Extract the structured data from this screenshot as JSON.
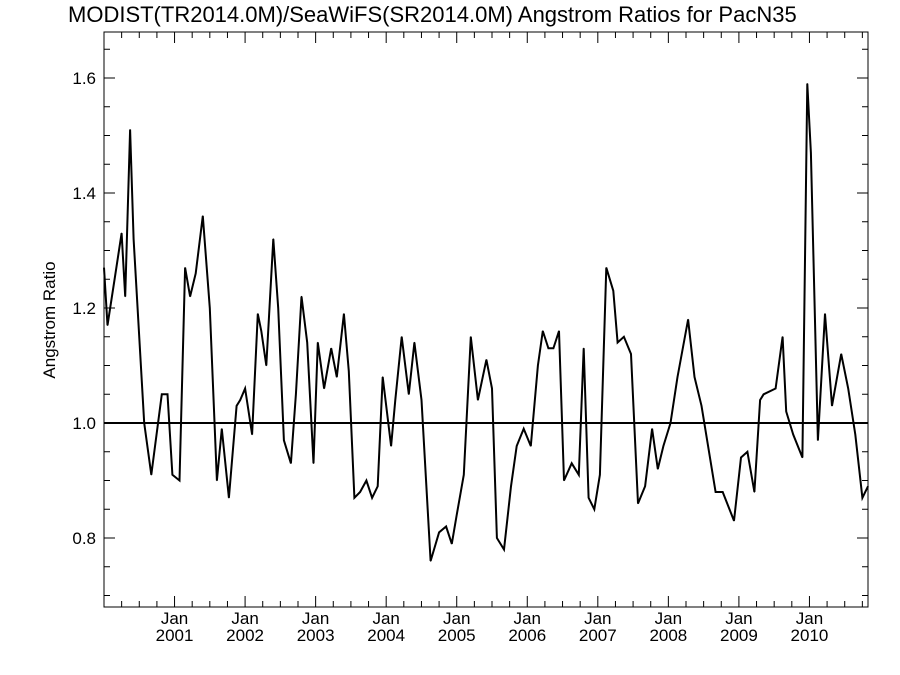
{
  "chart_data": {
    "type": "line",
    "title": "MODIST(TR2014.0M)/SeaWiFS(SR2014.0M)  Angstrom Ratios for PacN35",
    "xlabel": "",
    "ylabel": "Angstrom Ratio",
    "xlim": [
      2000.0,
      2010.83
    ],
    "ylim": [
      0.68,
      1.68
    ],
    "y_ticks": [
      {
        "value": 0.8,
        "label": "0.8"
      },
      {
        "value": 1.0,
        "label": "1.0"
      },
      {
        "value": 1.2,
        "label": "1.2"
      },
      {
        "value": 1.4,
        "label": "1.4"
      },
      {
        "value": 1.6,
        "label": "1.6"
      }
    ],
    "x_ticks": [
      {
        "value": 2001.0,
        "month": "Jan",
        "year": "2001"
      },
      {
        "value": 2002.0,
        "month": "Jan",
        "year": "2002"
      },
      {
        "value": 2003.0,
        "month": "Jan",
        "year": "2003"
      },
      {
        "value": 2004.0,
        "month": "Jan",
        "year": "2004"
      },
      {
        "value": 2005.0,
        "month": "Jan",
        "year": "2005"
      },
      {
        "value": 2006.0,
        "month": "Jan",
        "year": "2006"
      },
      {
        "value": 2007.0,
        "month": "Jan",
        "year": "2007"
      },
      {
        "value": 2008.0,
        "month": "Jan",
        "year": "2008"
      },
      {
        "value": 2009.0,
        "month": "Jan",
        "year": "2009"
      },
      {
        "value": 2010.0,
        "month": "Jan",
        "year": "2010"
      }
    ],
    "reference_line": 1.0,
    "grid": false,
    "series": [
      {
        "x": [
          2000.0,
          2000.05,
          2000.15,
          2000.25,
          2000.3,
          2000.37,
          2000.42,
          2000.57,
          2000.67,
          2000.82,
          2000.9,
          2000.97,
          2001.07,
          2001.15,
          2001.22,
          2001.3,
          2001.4,
          2001.5,
          2001.6,
          2001.67,
          2001.77,
          2001.88,
          2001.93,
          2002.0,
          2002.1,
          2002.18,
          2002.23,
          2002.3,
          2002.4,
          2002.47,
          2002.55,
          2002.65,
          2002.72,
          2002.8,
          2002.88,
          2002.97,
          2003.03,
          2003.12,
          2003.22,
          2003.3,
          2003.4,
          2003.47,
          2003.55,
          2003.63,
          2003.72,
          2003.8,
          2003.88,
          2003.95,
          2004.07,
          2004.13,
          2004.22,
          2004.32,
          2004.4,
          2004.5,
          2004.63,
          2004.75,
          2004.85,
          2004.93,
          2005.0,
          2005.1,
          2005.2,
          2005.3,
          2005.42,
          2005.5,
          2005.57,
          2005.67,
          2005.77,
          2005.85,
          2005.95,
          2006.05,
          2006.15,
          2006.22,
          2006.3,
          2006.37,
          2006.45,
          2006.52,
          2006.63,
          2006.73,
          2006.8,
          2006.87,
          2006.95,
          2007.03,
          2007.12,
          2007.22,
          2007.28,
          2007.37,
          2007.47,
          2007.57,
          2007.67,
          2007.77,
          2007.85,
          2007.93,
          2008.03,
          2008.13,
          2008.28,
          2008.37,
          2008.47,
          2008.67,
          2008.77,
          2008.93,
          2009.03,
          2009.12,
          2009.22,
          2009.3,
          2009.35,
          2009.52,
          2009.62,
          2009.67,
          2009.77,
          2009.9,
          2009.97,
          2010.02,
          2010.12,
          2010.22,
          2010.32,
          2010.45,
          2010.55,
          2010.65,
          2010.75,
          2010.83
        ],
        "values": [
          1.27,
          1.17,
          1.25,
          1.33,
          1.22,
          1.51,
          1.32,
          1.0,
          0.91,
          1.05,
          1.05,
          0.91,
          0.9,
          1.27,
          1.22,
          1.26,
          1.36,
          1.2,
          0.9,
          0.99,
          0.87,
          1.03,
          1.04,
          1.06,
          0.98,
          1.19,
          1.16,
          1.1,
          1.32,
          1.2,
          0.97,
          0.93,
          1.05,
          1.22,
          1.14,
          0.93,
          1.14,
          1.06,
          1.13,
          1.08,
          1.19,
          1.09,
          0.87,
          0.88,
          0.9,
          0.87,
          0.89,
          1.08,
          0.96,
          1.04,
          1.15,
          1.05,
          1.14,
          1.04,
          0.76,
          0.81,
          0.82,
          0.79,
          0.84,
          0.91,
          1.15,
          1.04,
          1.11,
          1.06,
          0.8,
          0.78,
          0.89,
          0.96,
          0.99,
          0.96,
          1.1,
          1.16,
          1.13,
          1.13,
          1.16,
          0.9,
          0.93,
          0.91,
          1.13,
          0.87,
          0.85,
          0.91,
          1.27,
          1.23,
          1.14,
          1.15,
          1.12,
          0.86,
          0.89,
          0.99,
          0.92,
          0.96,
          1.0,
          1.08,
          1.18,
          1.08,
          1.03,
          0.88,
          0.88,
          0.83,
          0.94,
          0.95,
          0.88,
          1.04,
          1.05,
          1.06,
          1.15,
          1.02,
          0.98,
          0.94,
          1.59,
          1.47,
          0.97,
          1.19,
          1.03,
          1.12,
          1.06,
          0.98,
          0.87,
          0.89
        ]
      }
    ]
  }
}
